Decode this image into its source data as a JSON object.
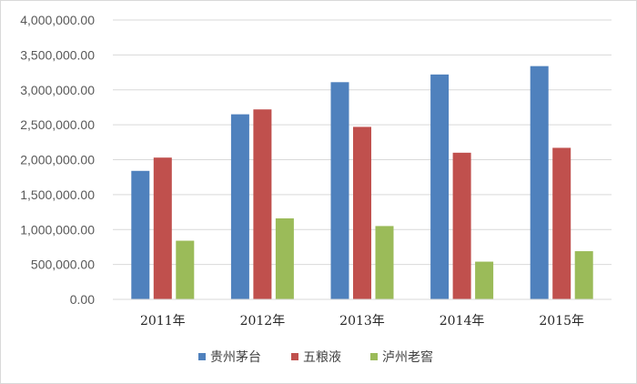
{
  "chart_data": {
    "type": "bar",
    "categories": [
      "2011年",
      "2012年",
      "2013年",
      "2014年",
      "2015年"
    ],
    "series": [
      {
        "name": "贵州茅台",
        "color": "#4f81bd",
        "values": [
          1840000,
          2650000,
          3110000,
          3220000,
          3340000
        ]
      },
      {
        "name": "五粮液",
        "color": "#c0504d",
        "values": [
          2030000,
          2720000,
          2470000,
          2100000,
          2170000
        ]
      },
      {
        "name": "泸州老窖",
        "color": "#9bbb59",
        "values": [
          840000,
          1160000,
          1050000,
          540000,
          690000
        ]
      }
    ],
    "y_ticks": [
      "0.00",
      "500,000.00",
      "1,000,000.00",
      "1,500,000.00",
      "2,000,000.00",
      "2,500,000.00",
      "3,000,000.00",
      "3,500,000.00",
      "4,000,000.00"
    ],
    "ylim": [
      0,
      4000000
    ],
    "grid": true,
    "legend_position": "bottom"
  }
}
